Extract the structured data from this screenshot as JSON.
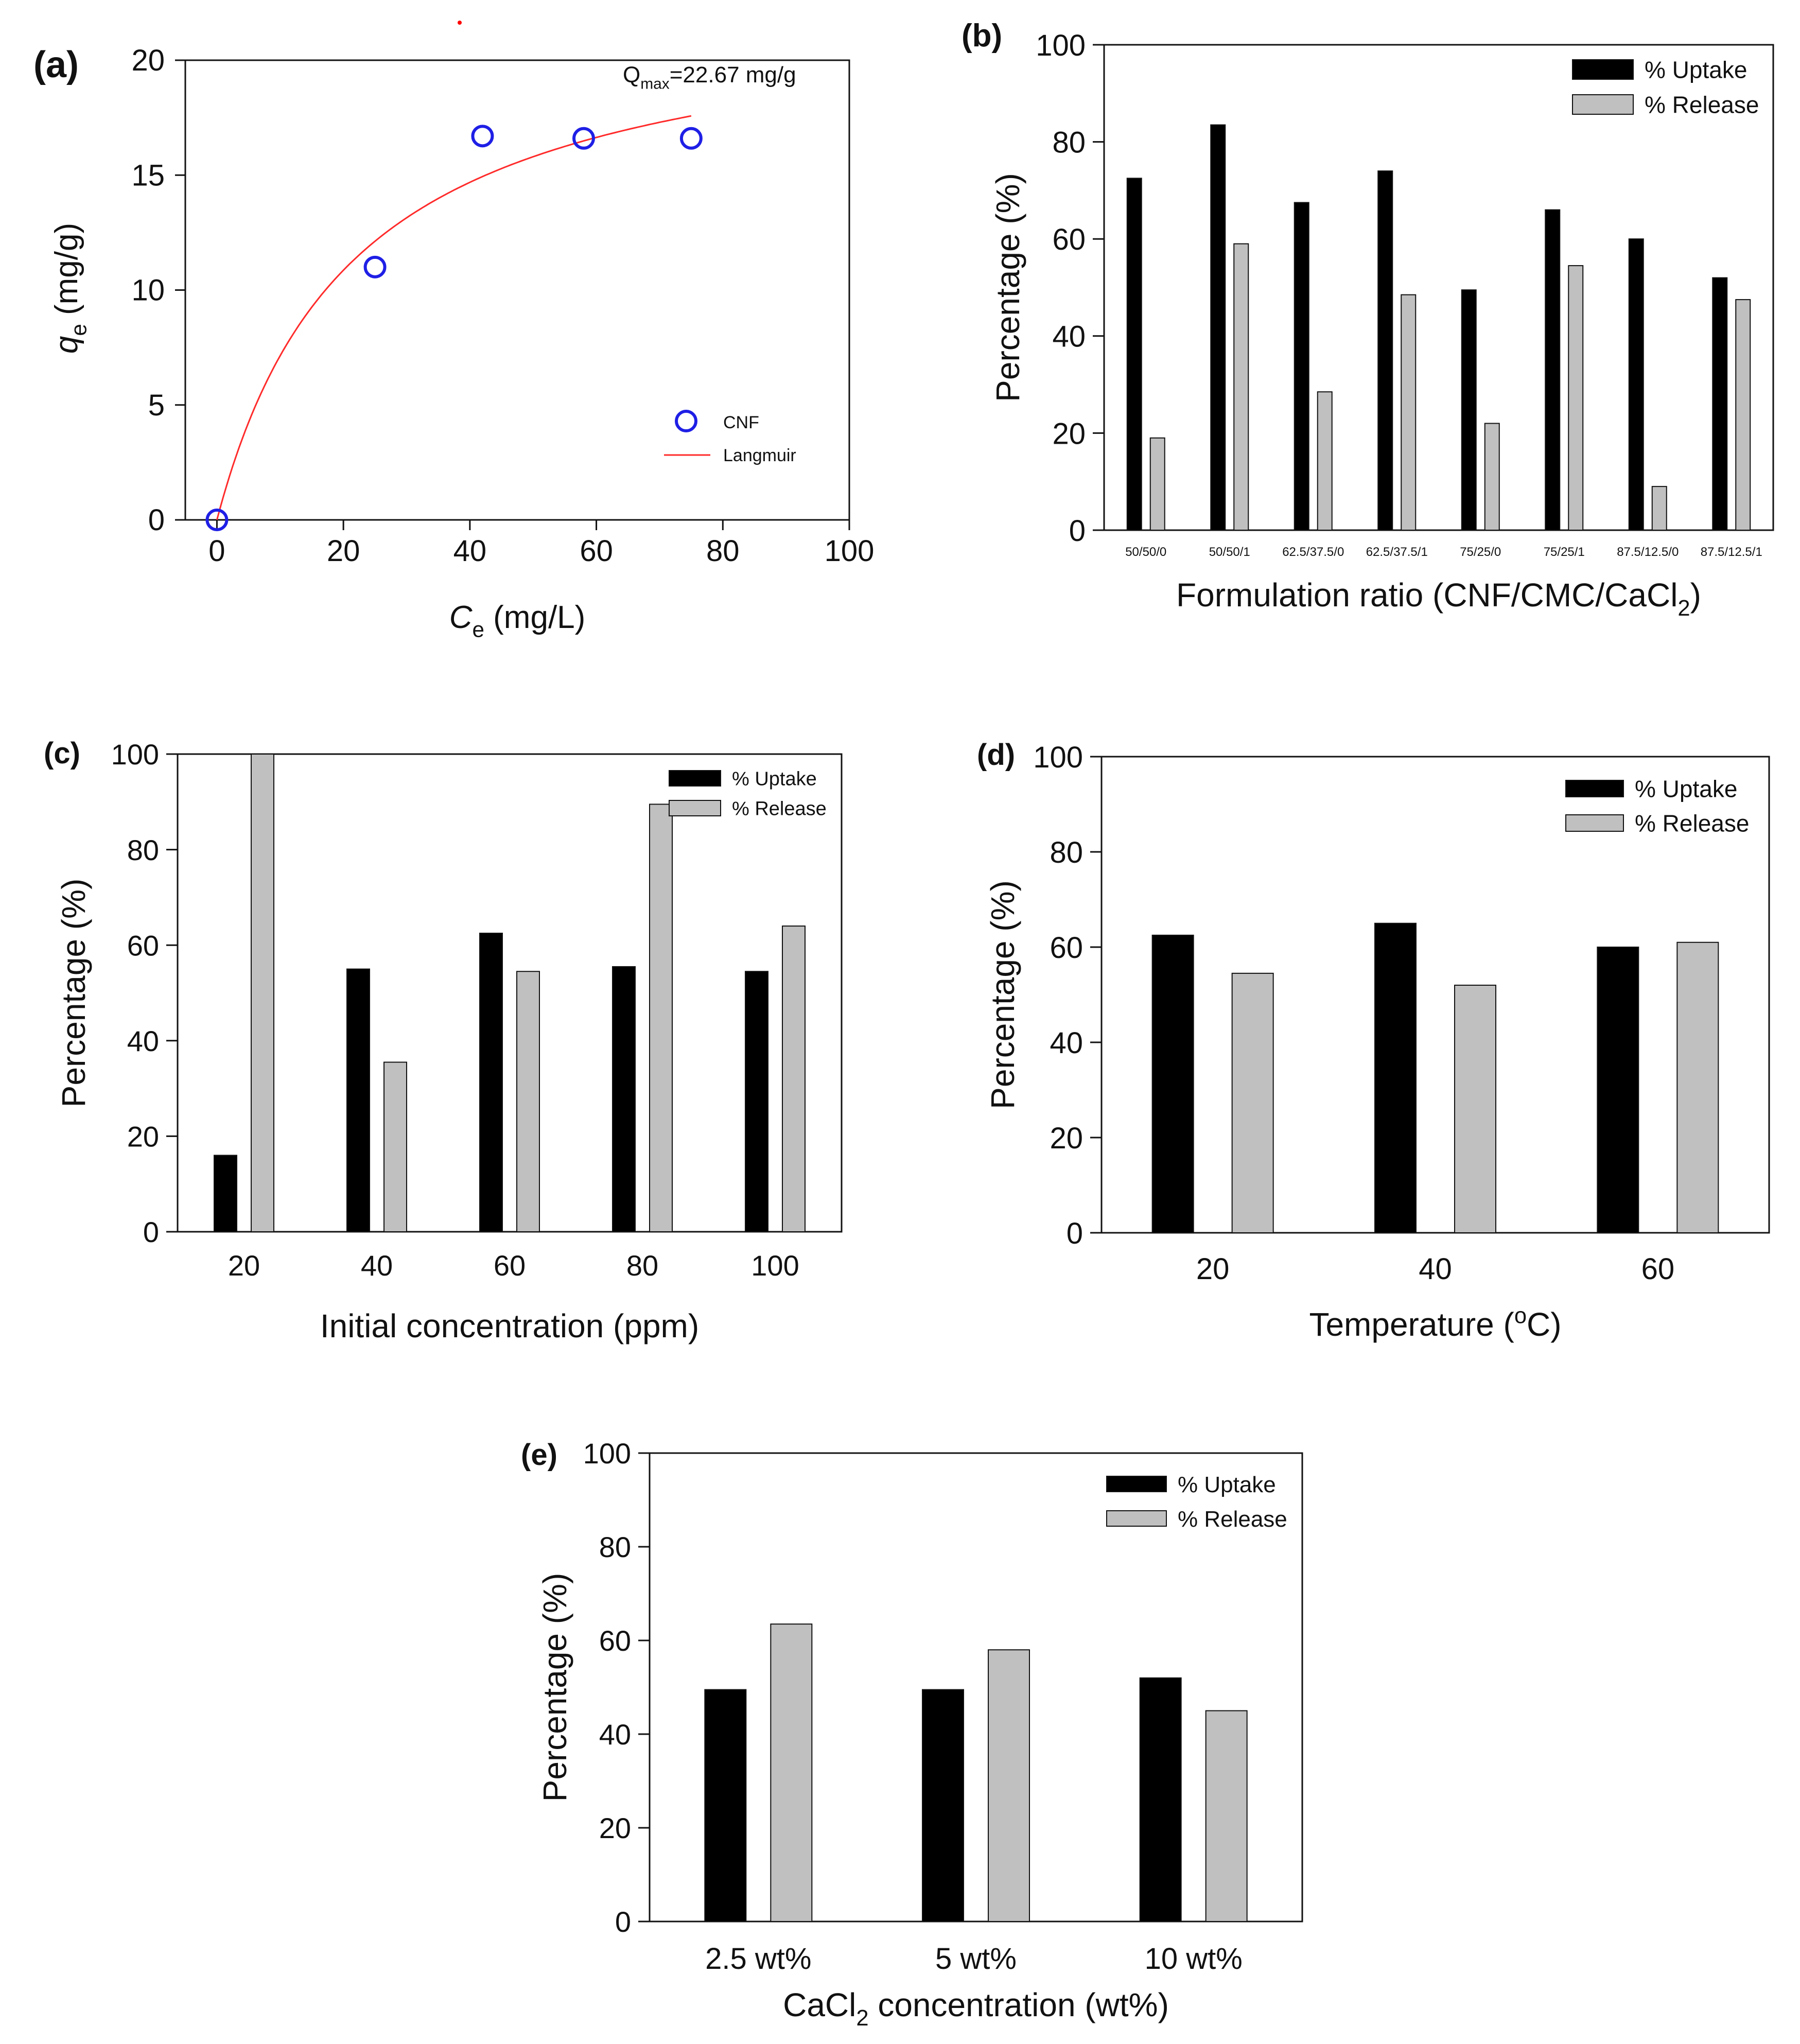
{
  "chart_data": [
    {
      "panel": "(a)",
      "type": "scatter",
      "xlabel_italic": "C",
      "xlabel_sub": "e",
      "xlabel_rest": " (mg/L)",
      "ylabel_italic": "q",
      "ylabel_sub": "e",
      "ylabel_rest": " (mg/g)",
      "xlim": [
        -5,
        100
      ],
      "ylim": [
        0,
        20
      ],
      "xticks": [
        0,
        20,
        40,
        60,
        80,
        100
      ],
      "yticks": [
        0,
        5,
        10,
        15,
        20
      ],
      "annotation_main": "Q",
      "annotation_sub": "max",
      "annotation_rest": "=22.67 mg/g",
      "series": [
        {
          "name": "CNF",
          "kind": "points",
          "color": "#1f1fe6",
          "x": [
            0,
            25,
            42,
            58,
            75
          ],
          "y": [
            0,
            11,
            16.7,
            16.6,
            16.6
          ]
        },
        {
          "name": "Langmuir",
          "kind": "curve",
          "color": "#ff2a2a",
          "qmax": 22.67,
          "kl": 0.046,
          "x_range": [
            0,
            75
          ]
        }
      ],
      "legend": [
        "CNF",
        "Langmuir"
      ],
      "legend_position": "bottom-right"
    },
    {
      "panel": "(b)",
      "type": "bar",
      "xlabel_main": "Formulation ratio (CNF/CMC/CaCl",
      "xlabel_sub": "2",
      "xlabel_end": ")",
      "ylabel": "Percentage (%)",
      "ylim": [
        0,
        100
      ],
      "yticks": [
        0,
        20,
        40,
        60,
        80,
        100
      ],
      "categories": [
        "50/50/0",
        "50/50/1",
        "62.5/37.5/0",
        "62.5/37.5/1",
        "75/25/0",
        "75/25/1",
        "87.5/12.5/0",
        "87.5/12.5/1"
      ],
      "series": [
        {
          "name": "% Uptake",
          "color": "#000000",
          "values": [
            72.5,
            83.5,
            67.5,
            74,
            49.5,
            66,
            60,
            52
          ]
        },
        {
          "name": "% Release",
          "color": "#c0c0c0",
          "values": [
            19,
            59,
            28.5,
            48.5,
            22,
            54.5,
            9,
            47.5
          ]
        }
      ],
      "legend_position": "top-right"
    },
    {
      "panel": "(c)",
      "type": "bar",
      "xlabel": "Initial concentration (ppm)",
      "ylabel": "Percentage (%)",
      "ylim": [
        0,
        100
      ],
      "yticks": [
        0,
        20,
        40,
        60,
        80,
        100
      ],
      "categories": [
        "20",
        "40",
        "60",
        "80",
        "100"
      ],
      "series": [
        {
          "name": "% Uptake",
          "color": "#000000",
          "values": [
            16,
            55,
            62.5,
            55.5,
            54.5
          ]
        },
        {
          "name": "% Release",
          "color": "#c0c0c0",
          "values": [
            100,
            35.5,
            54.5,
            89.5,
            64
          ]
        }
      ],
      "legend_position": "top-right"
    },
    {
      "panel": "(d)",
      "type": "bar",
      "xlabel_main": "Temperature (",
      "xlabel_sup": "o",
      "xlabel_end": "C)",
      "ylabel": "Percentage (%)",
      "ylim": [
        0,
        100
      ],
      "yticks": [
        0,
        20,
        40,
        60,
        80,
        100
      ],
      "categories": [
        "20",
        "40",
        "60"
      ],
      "series": [
        {
          "name": "% Uptake",
          "color": "#000000",
          "values": [
            62.5,
            65,
            60
          ]
        },
        {
          "name": "% Release",
          "color": "#c0c0c0",
          "values": [
            54.5,
            52,
            61
          ]
        }
      ],
      "legend_position": "top-right"
    },
    {
      "panel": "(e)",
      "type": "bar",
      "xlabel_main": "CaCl",
      "xlabel_sub": "2",
      "xlabel_end": " concentration (wt%)",
      "ylabel": "Percentage (%)",
      "ylim": [
        0,
        100
      ],
      "yticks": [
        0,
        20,
        40,
        60,
        80,
        100
      ],
      "categories": [
        "2.5 wt%",
        "5 wt%",
        "10 wt%"
      ],
      "series": [
        {
          "name": "% Uptake",
          "color": "#000000",
          "values": [
            49.5,
            49.5,
            52
          ]
        },
        {
          "name": "% Release",
          "color": "#c0c0c0",
          "values": [
            63.5,
            58,
            45
          ]
        }
      ],
      "legend_position": "top-right"
    }
  ]
}
